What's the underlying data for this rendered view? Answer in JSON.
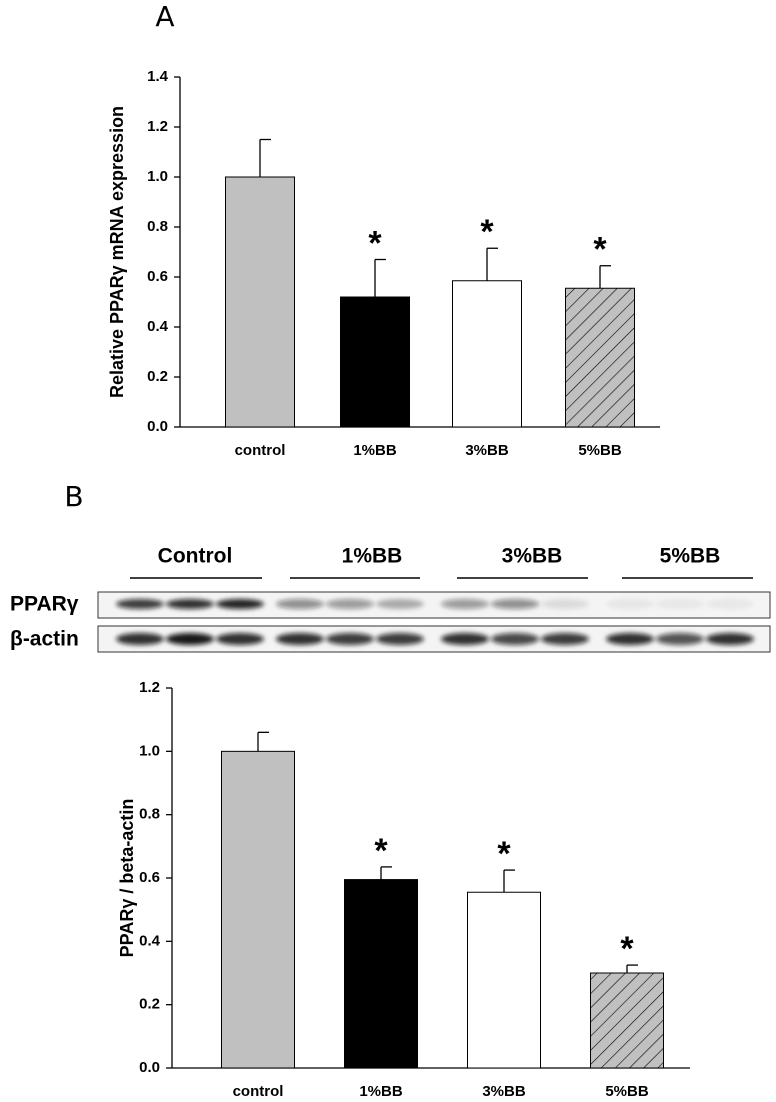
{
  "panels": [
    "A",
    "B"
  ],
  "blot": {
    "groups": [
      "Control",
      "1%BB",
      "3%BB",
      "5%BB"
    ],
    "rows": [
      "PPARγ",
      "β-actin"
    ]
  },
  "chart_data": [
    {
      "type": "bar",
      "ylabel": "Relative PPARγ mRNA expression",
      "categories": [
        "control",
        "1%BB",
        "3%BB",
        "5%BB"
      ],
      "values": [
        1.0,
        0.52,
        0.585,
        0.555
      ],
      "errors": [
        0.15,
        0.15,
        0.13,
        0.09
      ],
      "significance": [
        null,
        "*",
        "*",
        "*"
      ],
      "colors": [
        "#c0c0c0",
        "#000000",
        "#ffffff",
        "#c0c0c0"
      ],
      "hatch": [
        false,
        false,
        false,
        true
      ],
      "ylim": [
        0,
        1.4
      ],
      "yticks": [
        {
          "value": 0,
          "label": "0.0"
        },
        0.2,
        0.4,
        0.6,
        0.8,
        {
          "value": 1,
          "label": "1.0"
        },
        1.2,
        1.4
      ]
    },
    {
      "type": "bar",
      "ylabel": "PPARγ / beta-actin",
      "categories": [
        "control",
        "1%BB",
        "3%BB",
        "5%BB"
      ],
      "values": [
        1.0,
        0.595,
        0.555,
        0.3
      ],
      "errors": [
        0.06,
        0.04,
        0.07,
        0.025
      ],
      "significance": [
        null,
        "*",
        "*",
        "*"
      ],
      "colors": [
        "#c0c0c0",
        "#000000",
        "#ffffff",
        "#c0c0c0"
      ],
      "hatch": [
        false,
        false,
        false,
        true
      ],
      "ylim": [
        0,
        1.2
      ],
      "yticks": [
        {
          "value": 0,
          "label": "0.0"
        },
        0.2,
        0.4,
        0.6,
        0.8,
        {
          "value": 1,
          "label": "1.0"
        },
        1.2
      ]
    }
  ]
}
